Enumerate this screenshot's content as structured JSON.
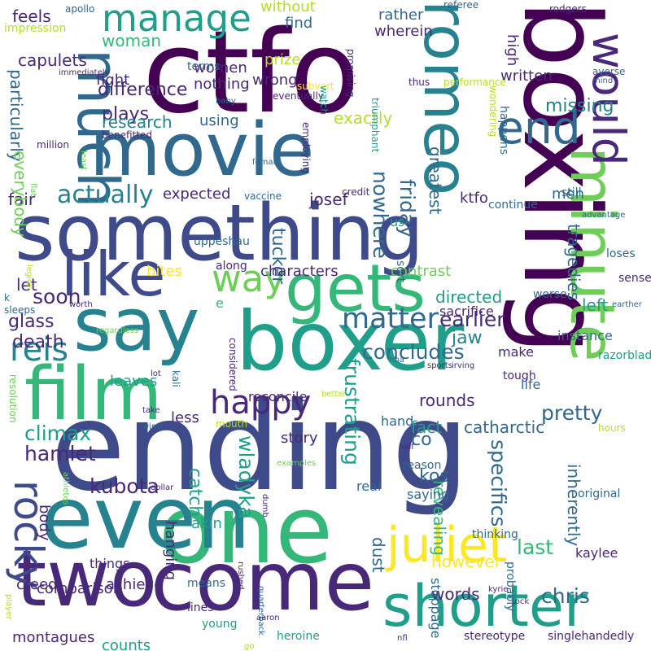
{
  "word_cloud": {
    "background": "#ffffff",
    "palette": {
      "purple": "#440154",
      "indigo": "#482878",
      "blue": "#3e4a89",
      "slate": "#31688e",
      "teal": "#26828e",
      "cyan": "#1f9e89",
      "green": "#35b779",
      "lime": "#6ece58",
      "yellowgreen": "#b5de2b",
      "yellow": "#fde725"
    },
    "words": [
      {
        "text": "ending",
        "color": "blue"
      },
      {
        "text": "boxing",
        "color": "purple"
      },
      {
        "text": "ctfo",
        "color": "purple"
      },
      {
        "text": "something",
        "color": "blue"
      },
      {
        "text": "movie",
        "color": "slate"
      },
      {
        "text": "one",
        "color": "green"
      },
      {
        "text": "boxer",
        "color": "cyan"
      },
      {
        "text": "say",
        "color": "teal"
      },
      {
        "text": "come",
        "color": "indigo"
      },
      {
        "text": "even",
        "color": "teal"
      },
      {
        "text": "minute",
        "color": "lime"
      },
      {
        "text": "two",
        "color": "indigo"
      },
      {
        "text": "shorter",
        "color": "cyan"
      },
      {
        "text": "film",
        "color": "green"
      },
      {
        "text": "like",
        "color": "blue"
      },
      {
        "text": "gets",
        "color": "green"
      },
      {
        "text": "romeo",
        "color": "teal"
      },
      {
        "text": "much",
        "color": "slate"
      },
      {
        "text": "juliet",
        "color": "yellow"
      },
      {
        "text": "way",
        "color": "lime"
      },
      {
        "text": "end",
        "color": "slate"
      },
      {
        "text": "would",
        "color": "indigo"
      },
      {
        "text": "happy",
        "color": "indigo"
      },
      {
        "text": "rocky",
        "color": "blue"
      },
      {
        "text": "reis",
        "color": "teal"
      },
      {
        "text": "manage",
        "color": "cyan"
      },
      {
        "text": "matter",
        "color": "slate"
      },
      {
        "text": "actually",
        "color": "teal"
      },
      {
        "text": "climax",
        "color": "cyan"
      },
      {
        "text": "hamlet",
        "color": "indigo"
      },
      {
        "text": "frustrating",
        "color": "cyan"
      },
      {
        "text": "wladyka",
        "color": "cyan"
      },
      {
        "text": "kubota",
        "color": "indigo"
      },
      {
        "text": "specifics",
        "color": "slate"
      },
      {
        "text": "pretty",
        "color": "slate"
      },
      {
        "text": "chris",
        "color": "slate"
      },
      {
        "text": "last",
        "color": "green"
      },
      {
        "text": "nowhere",
        "color": "slate"
      },
      {
        "text": "friday",
        "color": "slate"
      },
      {
        "text": "earlier",
        "color": "indigo"
      },
      {
        "text": "concludes",
        "color": "slate"
      },
      {
        "text": "soon",
        "color": "indigo"
      },
      {
        "text": "woman",
        "color": "green"
      },
      {
        "text": "words",
        "color": "indigo"
      },
      {
        "text": "missing",
        "color": "teal"
      },
      {
        "text": "difference",
        "color": "indigo"
      },
      {
        "text": "plays",
        "color": "indigo"
      },
      {
        "text": "research",
        "color": "teal"
      },
      {
        "text": "exactly",
        "color": "yellowgreen"
      },
      {
        "text": "greatest",
        "color": "slate"
      },
      {
        "text": "rounds",
        "color": "indigo"
      },
      {
        "text": "revealing",
        "color": "green"
      },
      {
        "text": "inherently",
        "color": "slate"
      },
      {
        "text": "tragedies",
        "color": "slate"
      },
      {
        "text": "glass",
        "color": "indigo"
      },
      {
        "text": "death",
        "color": "indigo"
      },
      {
        "text": "directed",
        "color": "cyan"
      },
      {
        "text": "jaw",
        "color": "teal"
      },
      {
        "text": "left",
        "color": "cyan"
      },
      {
        "text": "josef",
        "color": "indigo"
      },
      {
        "text": "tucker",
        "color": "slate"
      },
      {
        "text": "particularly",
        "color": "slate"
      },
      {
        "text": "fair",
        "color": "indigo"
      },
      {
        "text": "let",
        "color": "indigo"
      },
      {
        "text": "co",
        "color": "slate"
      },
      {
        "text": "kos",
        "color": "slate"
      },
      {
        "text": "fact",
        "color": "cyan"
      },
      {
        "text": "catch",
        "color": "cyan"
      },
      {
        "text": "however",
        "color": "yellow"
      },
      {
        "text": "dust",
        "color": "slate"
      },
      {
        "text": "catharctic",
        "color": "slate"
      },
      {
        "text": "everybody",
        "color": "lime"
      },
      {
        "text": "feels",
        "color": "indigo"
      },
      {
        "text": "capulets",
        "color": "indigo"
      },
      {
        "text": "fight",
        "color": "indigo"
      },
      {
        "text": "nothing",
        "color": "indigo"
      },
      {
        "text": "women",
        "color": "indigo"
      },
      {
        "text": "wrong",
        "color": "indigo"
      },
      {
        "text": "prize",
        "color": "yellowgreen"
      },
      {
        "text": "find",
        "color": "slate"
      },
      {
        "text": "rather",
        "color": "slate"
      },
      {
        "text": "wherein",
        "color": "indigo"
      },
      {
        "text": "written",
        "color": "indigo"
      },
      {
        "text": "high",
        "color": "indigo"
      },
      {
        "text": "using",
        "color": "slate"
      },
      {
        "text": "expected",
        "color": "indigo"
      },
      {
        "text": "ktfo",
        "color": "indigo"
      },
      {
        "text": "men",
        "color": "slate"
      },
      {
        "text": "without",
        "color": "yellowgreen"
      },
      {
        "text": "bites",
        "color": "yellow"
      },
      {
        "text": "characters",
        "color": "indigo"
      },
      {
        "text": "contrast",
        "color": "lime"
      },
      {
        "text": "body",
        "color": "indigo"
      },
      {
        "text": "hanging",
        "color": "indigo"
      },
      {
        "text": "akin",
        "color": "cyan"
      },
      {
        "text": "story",
        "color": "indigo"
      },
      {
        "text": "creed",
        "color": "indigo"
      },
      {
        "text": "comparison",
        "color": "indigo"
      },
      {
        "text": "achieve",
        "color": "indigo"
      },
      {
        "text": "counts",
        "color": "cyan"
      },
      {
        "text": "montagues",
        "color": "indigo"
      },
      {
        "text": "means",
        "color": "slate"
      },
      {
        "text": "lines",
        "color": "indigo"
      },
      {
        "text": "young",
        "color": "cyan"
      },
      {
        "text": "heroine",
        "color": "cyan"
      },
      {
        "text": "stereotype",
        "color": "indigo"
      },
      {
        "text": "singlehandedly",
        "color": "indigo"
      },
      {
        "text": "kaylee",
        "color": "indigo"
      },
      {
        "text": "original",
        "color": "slate"
      },
      {
        "text": "probably",
        "color": "slate"
      },
      {
        "text": "thinking",
        "color": "slate"
      },
      {
        "text": "saying",
        "color": "slate"
      },
      {
        "text": "real",
        "color": "slate"
      },
      {
        "text": "reason",
        "color": "slate"
      },
      {
        "text": "hand",
        "color": "slate"
      },
      {
        "text": "stoppage",
        "color": "slate"
      },
      {
        "text": "things",
        "color": "indigo"
      },
      {
        "text": "leaves",
        "color": "cyan"
      },
      {
        "text": "reconcile",
        "color": "indigo"
      },
      {
        "text": "less",
        "color": "indigo"
      },
      {
        "text": "instance",
        "color": "slate"
      },
      {
        "text": "make",
        "color": "indigo"
      },
      {
        "text": "tough",
        "color": "indigo"
      },
      {
        "text": "life",
        "color": "slate"
      },
      {
        "text": "razorblade",
        "color": "cyan"
      },
      {
        "text": "worse",
        "color": "slate"
      },
      {
        "text": "sacrifice",
        "color": "indigo"
      },
      {
        "text": "sense",
        "color": "indigo"
      },
      {
        "text": "loses",
        "color": "slate"
      },
      {
        "text": "continue",
        "color": "slate"
      },
      {
        "text": "still",
        "color": "slate"
      },
      {
        "text": "sort",
        "color": "slate"
      },
      {
        "text": "us",
        "color": "cyan"
      },
      {
        "text": "along",
        "color": "indigo"
      },
      {
        "text": "uppeshau",
        "color": "slate"
      },
      {
        "text": "terms",
        "color": "slate"
      },
      {
        "text": "impression",
        "color": "yellowgreen"
      },
      {
        "text": "apollo",
        "color": "slate"
      },
      {
        "text": "referee",
        "color": "slate"
      },
      {
        "text": "rodgers",
        "color": "indigo"
      },
      {
        "text": "averse",
        "color": "slate"
      },
      {
        "text": "mind",
        "color": "slate"
      },
      {
        "text": "thus",
        "color": "indigo"
      },
      {
        "text": "triumphant",
        "color": "cyan"
      },
      {
        "text": "promising",
        "color": "indigo"
      },
      {
        "text": "subvert",
        "color": "yellow"
      },
      {
        "text": "eventually",
        "color": "indigo"
      },
      {
        "text": "watch",
        "color": "cyan"
      },
      {
        "text": "performance",
        "color": "yellowgreen"
      },
      {
        "text": "wondering",
        "color": "yellowgreen"
      },
      {
        "text": "happens",
        "color": "slate"
      },
      {
        "text": "credit",
        "color": "indigo"
      },
      {
        "text": "employing",
        "color": "indigo"
      },
      {
        "text": "vaccine",
        "color": "slate"
      },
      {
        "text": "female",
        "color": "slate"
      },
      {
        "text": "immediately",
        "color": "indigo"
      },
      {
        "text": "benefitted",
        "color": "indigo"
      },
      {
        "text": "million",
        "color": "indigo"
      },
      {
        "text": "least",
        "color": "lime"
      },
      {
        "text": "baby",
        "color": "slate"
      },
      {
        "text": "flat",
        "color": "lime"
      },
      {
        "text": "advantage",
        "color": "slate"
      },
      {
        "text": "legion",
        "color": "yellowgreen"
      },
      {
        "text": "k",
        "color": "slate"
      },
      {
        "text": "sleeps",
        "color": "slate"
      },
      {
        "text": "worth",
        "color": "indigo"
      },
      {
        "text": "e",
        "color": "green"
      },
      {
        "text": "regardless",
        "color": "lime"
      },
      {
        "text": "kali",
        "color": "slate"
      },
      {
        "text": "lot",
        "color": "indigo"
      },
      {
        "text": "considered",
        "color": "indigo"
      },
      {
        "text": "resolution",
        "color": "lime"
      },
      {
        "text": "better",
        "color": "yellowgreen"
      },
      {
        "text": "nba",
        "color": "slate"
      },
      {
        "text": "sports",
        "color": "indigo"
      },
      {
        "text": "irving",
        "color": "indigo"
      },
      {
        "text": "earther",
        "color": "slate"
      },
      {
        "text": "take",
        "color": "indigo"
      },
      {
        "text": "wind",
        "color": "slate"
      },
      {
        "text": "mouth",
        "color": "yellowgreen"
      },
      {
        "text": "examples",
        "color": "lime"
      },
      {
        "text": "half",
        "color": "indigo"
      },
      {
        "text": "hours",
        "color": "yellowgreen"
      },
      {
        "text": "athletes",
        "color": "lime"
      },
      {
        "text": "dumb",
        "color": "indigo"
      },
      {
        "text": "dollar",
        "color": "indigo"
      },
      {
        "text": "rushed",
        "color": "indigo"
      },
      {
        "text": "player",
        "color": "yellowgreen"
      },
      {
        "text": "quarterback",
        "color": "slate"
      },
      {
        "text": "go",
        "color": "yellowgreen"
      },
      {
        "text": "aaron",
        "color": "indigo"
      },
      {
        "text": "nfl",
        "color": "indigo"
      },
      {
        "text": "kyrie",
        "color": "indigo"
      },
      {
        "text": "jock",
        "color": "indigo"
      }
    ]
  }
}
